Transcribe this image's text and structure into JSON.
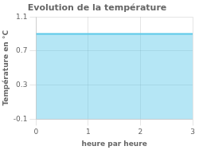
{
  "chart_data": {
    "type": "area",
    "title": "Evolution de la température",
    "xlabel": "heure par heure",
    "ylabel": "Température en °C",
    "x": [
      0,
      3
    ],
    "values": [
      0.9,
      0.9
    ],
    "color": "#5bc8e8",
    "xlim": [
      0,
      3
    ],
    "ylim": [
      -0.1,
      1.1
    ],
    "xticks": [
      0,
      1,
      2,
      3
    ],
    "yticks": [
      -0.1,
      0.3,
      0.7,
      1.1
    ],
    "grid": true
  }
}
